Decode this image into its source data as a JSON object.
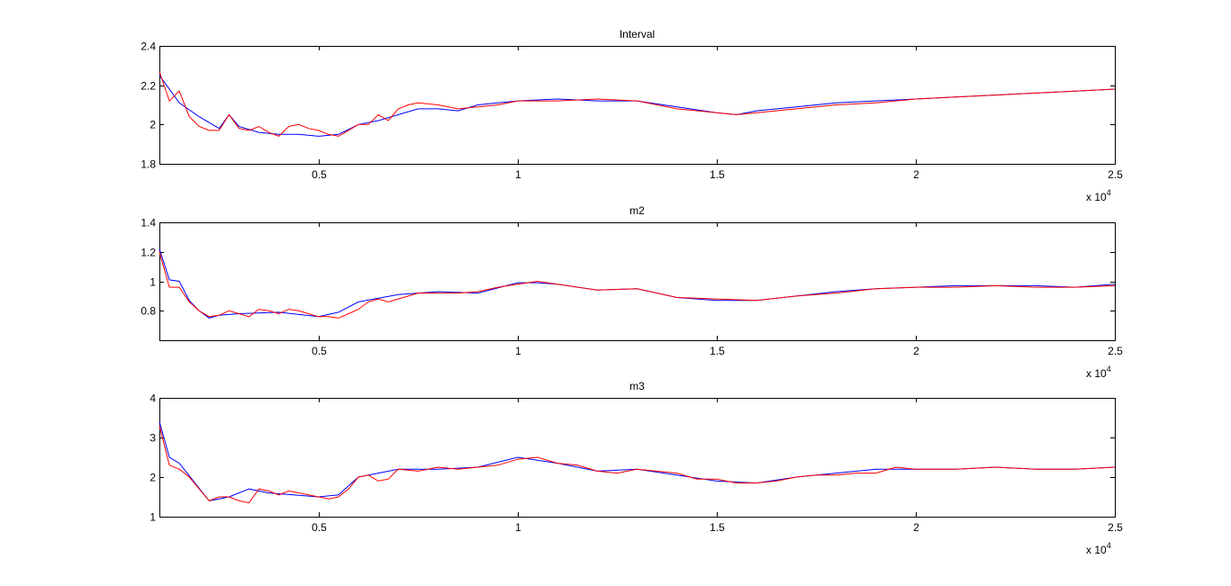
{
  "chart_data": [
    {
      "type": "line",
      "title": "Interval",
      "xlabel": "",
      "ylabel": "",
      "xlim": [
        1000,
        25000
      ],
      "ylim": [
        1.8,
        2.4
      ],
      "xticks": [
        5000,
        10000,
        15000,
        20000,
        25000
      ],
      "xticklabels": [
        "0.5",
        "1",
        "1.5",
        "2",
        "2.5"
      ],
      "yticks": [
        1.8,
        2.0,
        2.2,
        2.4
      ],
      "yticklabels": [
        "1.8",
        "2",
        "2.2",
        "2.4"
      ],
      "exponent_base": "x 10",
      "exponent_power": "4",
      "grid": false,
      "series": [
        {
          "color": "#0000ff",
          "x": [
            1000,
            1500,
            2000,
            2500,
            2750,
            3000,
            3500,
            4000,
            4500,
            5000,
            5500,
            6000,
            6500,
            7000,
            7500,
            8000,
            8500,
            9000,
            9500,
            10000,
            11000,
            12000,
            13000,
            14000,
            15000,
            15500,
            16000,
            17000,
            18000,
            19000,
            20000,
            21000,
            22000,
            23000,
            24000,
            25000
          ],
          "y": [
            2.25,
            2.11,
            2.04,
            1.98,
            2.05,
            1.99,
            1.96,
            1.95,
            1.95,
            1.94,
            1.95,
            2.0,
            2.02,
            2.05,
            2.08,
            2.08,
            2.07,
            2.1,
            2.11,
            2.12,
            2.13,
            2.12,
            2.12,
            2.09,
            2.06,
            2.05,
            2.07,
            2.09,
            2.11,
            2.12,
            2.13,
            2.14,
            2.15,
            2.16,
            2.17,
            2.18
          ]
        },
        {
          "color": "#ff0000",
          "x": [
            1000,
            1250,
            1500,
            1750,
            2000,
            2250,
            2500,
            2750,
            3000,
            3250,
            3500,
            3750,
            4000,
            4250,
            4500,
            4750,
            5000,
            5250,
            5500,
            5750,
            6000,
            6250,
            6500,
            6750,
            7000,
            7250,
            7500,
            8000,
            8500,
            9000,
            9500,
            10000,
            11000,
            12000,
            13000,
            14000,
            15000,
            15500,
            16000,
            17000,
            18000,
            19000,
            20000,
            21000,
            22000,
            23000,
            24000,
            25000
          ],
          "y": [
            2.27,
            2.12,
            2.17,
            2.04,
            1.99,
            1.97,
            1.97,
            2.05,
            1.98,
            1.97,
            1.99,
            1.96,
            1.94,
            1.99,
            2.0,
            1.98,
            1.97,
            1.95,
            1.94,
            1.97,
            2.0,
            2.0,
            2.05,
            2.02,
            2.08,
            2.1,
            2.11,
            2.1,
            2.08,
            2.09,
            2.1,
            2.12,
            2.12,
            2.13,
            2.12,
            2.08,
            2.06,
            2.05,
            2.06,
            2.08,
            2.1,
            2.11,
            2.13,
            2.14,
            2.15,
            2.16,
            2.17,
            2.18
          ]
        }
      ]
    },
    {
      "type": "line",
      "title": "m2",
      "xlabel": "",
      "ylabel": "",
      "xlim": [
        1000,
        25000
      ],
      "ylim": [
        0.6,
        1.4
      ],
      "xticks": [
        5000,
        10000,
        15000,
        20000,
        25000
      ],
      "xticklabels": [
        "0.5",
        "1",
        "1.5",
        "2",
        "2.5"
      ],
      "yticks": [
        0.8,
        1.0,
        1.2,
        1.4
      ],
      "yticklabels": [
        "0.8",
        "1",
        "1.2",
        "1.4"
      ],
      "exponent_base": "x 10",
      "exponent_power": "4",
      "grid": false,
      "series": [
        {
          "color": "#0000ff",
          "x": [
            1000,
            1250,
            1500,
            1750,
            2000,
            2250,
            2500,
            3000,
            4000,
            5000,
            5500,
            6000,
            7000,
            8000,
            9000,
            10000,
            10500,
            11000,
            12000,
            13000,
            14000,
            15000,
            16000,
            17000,
            18000,
            19000,
            20000,
            21000,
            22000,
            23000,
            24000,
            25000
          ],
          "y": [
            1.22,
            1.01,
            1.0,
            0.87,
            0.8,
            0.75,
            0.77,
            0.78,
            0.79,
            0.76,
            0.79,
            0.86,
            0.91,
            0.93,
            0.92,
            0.99,
            0.99,
            0.98,
            0.94,
            0.95,
            0.89,
            0.87,
            0.87,
            0.9,
            0.93,
            0.95,
            0.96,
            0.97,
            0.97,
            0.97,
            0.96,
            0.98
          ]
        },
        {
          "color": "#ff0000",
          "x": [
            1000,
            1250,
            1500,
            1750,
            2000,
            2250,
            2500,
            2750,
            3000,
            3250,
            3500,
            3750,
            4000,
            4250,
            4500,
            4750,
            5000,
            5250,
            5500,
            5750,
            6000,
            6250,
            6500,
            6750,
            7000,
            7500,
            8000,
            8500,
            9000,
            9500,
            10000,
            10500,
            11000,
            12000,
            13000,
            14000,
            15000,
            16000,
            17000,
            18000,
            19000,
            20000,
            21000,
            22000,
            23000,
            24000,
            25000
          ],
          "y": [
            1.2,
            0.96,
            0.96,
            0.86,
            0.8,
            0.76,
            0.77,
            0.8,
            0.78,
            0.76,
            0.81,
            0.8,
            0.78,
            0.81,
            0.8,
            0.78,
            0.76,
            0.76,
            0.75,
            0.78,
            0.81,
            0.86,
            0.88,
            0.86,
            0.88,
            0.92,
            0.92,
            0.92,
            0.93,
            0.96,
            0.98,
            1.0,
            0.98,
            0.94,
            0.95,
            0.89,
            0.88,
            0.87,
            0.9,
            0.92,
            0.95,
            0.96,
            0.96,
            0.97,
            0.96,
            0.96,
            0.97
          ]
        }
      ]
    },
    {
      "type": "line",
      "title": "m3",
      "xlabel": "",
      "ylabel": "",
      "xlim": [
        1000,
        25000
      ],
      "ylim": [
        1,
        4
      ],
      "xticks": [
        5000,
        10000,
        15000,
        20000,
        25000
      ],
      "xticklabels": [
        "0.5",
        "1",
        "1.5",
        "2",
        "2.5"
      ],
      "yticks": [
        1,
        2,
        3,
        4
      ],
      "yticklabels": [
        "1",
        "2",
        "3",
        "4"
      ],
      "exponent_base": "x 10",
      "exponent_power": "4",
      "grid": false,
      "series": [
        {
          "color": "#0000ff",
          "x": [
            1000,
            1250,
            1500,
            2250,
            2750,
            3250,
            3750,
            5000,
            5500,
            6000,
            7000,
            8000,
            9000,
            10000,
            11000,
            12000,
            13000,
            14000,
            15000,
            16000,
            17000,
            18000,
            19000,
            20000,
            21000,
            22000,
            23000,
            24000,
            25000
          ],
          "y": [
            3.4,
            2.5,
            2.35,
            1.4,
            1.5,
            1.7,
            1.6,
            1.5,
            1.55,
            2.0,
            2.2,
            2.2,
            2.25,
            2.5,
            2.35,
            2.15,
            2.2,
            2.05,
            1.9,
            1.85,
            2.0,
            2.1,
            2.2,
            2.2,
            2.2,
            2.25,
            2.2,
            2.2,
            2.25
          ]
        },
        {
          "color": "#ff0000",
          "x": [
            1000,
            1250,
            1500,
            1750,
            2000,
            2250,
            2500,
            2750,
            3000,
            3250,
            3500,
            3750,
            4000,
            4250,
            4500,
            4750,
            5000,
            5250,
            5500,
            5750,
            6000,
            6250,
            6500,
            6750,
            7000,
            7500,
            8000,
            8500,
            9000,
            9500,
            10000,
            10500,
            11000,
            11500,
            12000,
            12500,
            13000,
            14000,
            14500,
            15000,
            15500,
            16000,
            16500,
            17000,
            17500,
            18000,
            18500,
            19000,
            19500,
            20000,
            21000,
            22000,
            23000,
            24000,
            25000
          ],
          "y": [
            3.3,
            2.3,
            2.2,
            2.0,
            1.7,
            1.4,
            1.5,
            1.5,
            1.4,
            1.35,
            1.7,
            1.65,
            1.55,
            1.65,
            1.6,
            1.55,
            1.5,
            1.45,
            1.5,
            1.7,
            2.0,
            2.05,
            1.9,
            1.95,
            2.2,
            2.15,
            2.25,
            2.2,
            2.25,
            2.3,
            2.45,
            2.5,
            2.35,
            2.3,
            2.15,
            2.1,
            2.2,
            2.1,
            1.95,
            1.95,
            1.85,
            1.85,
            1.9,
            2.0,
            2.05,
            2.05,
            2.1,
            2.1,
            2.25,
            2.2,
            2.2,
            2.25,
            2.2,
            2.2,
            2.25
          ]
        }
      ]
    }
  ]
}
